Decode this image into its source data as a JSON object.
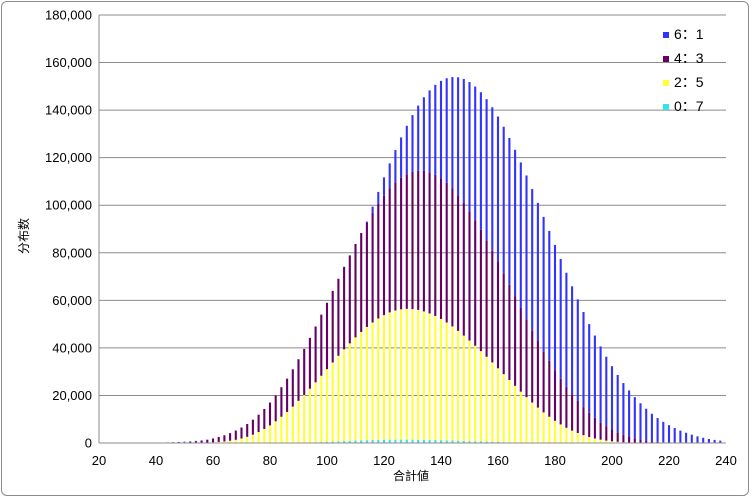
{
  "chart_data": {
    "type": "bar",
    "stacked": true,
    "title": "",
    "xlabel": "合計値",
    "ylabel": "分布数",
    "xlim": [
      20,
      240
    ],
    "ylim": [
      0,
      180000
    ],
    "x_ticks": [
      "20",
      "40",
      "60",
      "80",
      "100",
      "120",
      "140",
      "160",
      "180",
      "200",
      "220",
      "240"
    ],
    "y_ticks": [
      "0",
      "20,000",
      "40,000",
      "60,000",
      "80,000",
      "100,000",
      "120,000",
      "140,000",
      "160,000",
      "180,000"
    ],
    "grid": "horizontal",
    "legend_position": "top-right",
    "x": [
      28,
      30,
      32,
      34,
      36,
      38,
      40,
      42,
      44,
      46,
      48,
      50,
      52,
      54,
      56,
      58,
      60,
      62,
      64,
      66,
      68,
      70,
      72,
      74,
      76,
      78,
      80,
      82,
      84,
      86,
      88,
      90,
      92,
      94,
      96,
      98,
      100,
      102,
      104,
      106,
      108,
      110,
      112,
      114,
      116,
      118,
      120,
      122,
      124,
      126,
      128,
      130,
      132,
      134,
      136,
      138,
      140,
      142,
      144,
      146,
      148,
      150,
      152,
      154,
      156,
      158,
      160,
      162,
      164,
      166,
      168,
      170,
      172,
      174,
      176,
      178,
      180,
      182,
      184,
      186,
      188,
      190,
      192,
      194,
      196,
      198,
      200,
      202,
      204,
      206,
      208,
      210,
      212,
      214,
      216,
      218,
      220,
      222,
      224,
      226,
      228,
      230,
      232,
      234,
      236,
      238
    ],
    "series": [
      {
        "name": "0：7",
        "color": "#33e6e6",
        "values": [
          0,
          0,
          0,
          0,
          0,
          0,
          0,
          0,
          0,
          0,
          0,
          0,
          0,
          0,
          0,
          0,
          0,
          0,
          0,
          0,
          0,
          0,
          0,
          0,
          0,
          0,
          10,
          20,
          40,
          60,
          90,
          130,
          170,
          230,
          300,
          380,
          470,
          570,
          680,
          790,
          900,
          1010,
          1110,
          1200,
          1280,
          1340,
          1390,
          1420,
          1430,
          1430,
          1420,
          1400,
          1370,
          1330,
          1280,
          1230,
          1170,
          1100,
          1030,
          950,
          870,
          790,
          710,
          630,
          560,
          490,
          420,
          360,
          300,
          250,
          200,
          160,
          120,
          90,
          70,
          50,
          30,
          20,
          10,
          0,
          0,
          0,
          0,
          0,
          0,
          0,
          0,
          0,
          0,
          0,
          0,
          0,
          0,
          0,
          0,
          0,
          0,
          0,
          0,
          0,
          0,
          0,
          0,
          0,
          0,
          0
        ]
      },
      {
        "name": "2：5",
        "color": "#ffff33",
        "values": [
          0,
          0,
          0,
          0,
          0,
          0,
          0,
          0,
          0,
          0,
          0,
          0,
          50,
          80,
          130,
          200,
          300,
          450,
          650,
          950,
          1350,
          1900,
          2600,
          3500,
          4600,
          5900,
          7400,
          9100,
          11000,
          13000,
          15200,
          17600,
          20000,
          22600,
          25200,
          27900,
          30600,
          33300,
          36000,
          38600,
          41000,
          43400,
          45600,
          47600,
          49400,
          51000,
          52400,
          53500,
          54300,
          54800,
          55000,
          54900,
          54600,
          54000,
          53200,
          52200,
          51000,
          49600,
          48000,
          46200,
          44300,
          42300,
          40200,
          38000,
          35700,
          33400,
          31000,
          28600,
          26200,
          23800,
          21400,
          19100,
          16900,
          14800,
          12800,
          11000,
          9300,
          7800,
          6400,
          5200,
          4200,
          3300,
          2500,
          1900,
          1400,
          1000,
          700,
          500,
          300,
          200,
          100,
          50,
          0,
          0,
          0,
          0,
          0,
          0,
          0,
          0,
          0,
          0,
          0,
          0,
          0,
          0
        ]
      },
      {
        "name": "4：3",
        "color": "#660066",
        "values": [
          0,
          0,
          0,
          0,
          0,
          0,
          0,
          50,
          80,
          130,
          200,
          300,
          450,
          650,
          900,
          1200,
          1600,
          2100,
          2600,
          3200,
          3900,
          4600,
          5400,
          6300,
          7300,
          8400,
          9600,
          10900,
          12400,
          14000,
          15700,
          17500,
          19400,
          21400,
          23500,
          25700,
          27900,
          30100,
          32400,
          34700,
          37000,
          39300,
          41600,
          43900,
          46100,
          48200,
          50200,
          52100,
          53800,
          55300,
          56600,
          57700,
          58500,
          59100,
          59400,
          59400,
          59200,
          58700,
          58000,
          57000,
          55800,
          54400,
          52800,
          51000,
          49000,
          46900,
          44700,
          42400,
          40000,
          37600,
          35200,
          32800,
          30400,
          28000,
          25700,
          23500,
          21300,
          19200,
          17200,
          15300,
          13500,
          11800,
          10200,
          8700,
          7300,
          6100,
          5000,
          4000,
          3200,
          2500,
          1900,
          1400,
          1000,
          700,
          500,
          300,
          200,
          100,
          50,
          0,
          0,
          0,
          0,
          0,
          0,
          0
        ]
      },
      {
        "name": "6：1",
        "color": "#3333ff",
        "values": [
          0,
          0,
          0,
          0,
          0,
          0,
          0,
          0,
          0,
          0,
          0,
          0,
          0,
          0,
          0,
          0,
          0,
          0,
          0,
          0,
          0,
          0,
          0,
          0,
          0,
          0,
          0,
          0,
          0,
          0,
          0,
          0,
          0,
          0,
          0,
          0,
          0,
          0,
          0,
          0,
          0,
          0,
          0,
          0,
          0,
          0,
          0,
          0,
          0,
          0,
          0,
          0,
          0,
          0,
          0,
          0,
          0,
          0,
          0,
          0,
          0,
          0,
          0,
          0,
          0,
          0,
          0,
          0,
          0,
          0,
          0,
          0,
          0,
          0,
          0,
          0,
          0,
          0,
          0,
          0,
          0,
          0,
          0,
          0,
          0,
          0,
          0,
          0,
          0,
          0,
          0,
          0,
          0,
          0,
          0,
          0,
          0,
          0,
          0,
          0,
          0,
          0,
          0,
          0,
          0,
          0
        ]
      }
    ],
    "top_series_note_values": {
      "name": "6：1",
      "totals": [
        20,
        30,
        40,
        60,
        80,
        110,
        150,
        200,
        260,
        340,
        440,
        560,
        710,
        890,
        1110,
        1380,
        1700,
        2100,
        2600,
        3200,
        3950,
        4850,
        5950,
        7250,
        8800,
        10600,
        12700,
        15100,
        17800,
        20800,
        24100,
        27800,
        31800,
        36100,
        40800,
        45700,
        51000,
        56500,
        62300,
        68200,
        74300,
        80500,
        86800,
        93100,
        99400,
        105600,
        111700,
        117600,
        123200,
        128500,
        133400,
        137900,
        141900,
        145400,
        148300,
        150600,
        152300,
        153400,
        153900,
        153800,
        153100,
        151800,
        149900,
        147500,
        144600,
        141200,
        137300,
        133000,
        128300,
        123300,
        118000,
        112500,
        106800,
        101000,
        95100,
        89200,
        83300,
        77400,
        71600,
        65900,
        60400,
        55100,
        50000,
        45200,
        40600,
        36300,
        32300,
        28600,
        25200,
        22100,
        19300,
        16700,
        14400,
        12300,
        10500,
        8900,
        7500,
        6300,
        5200,
        4300,
        3500,
        2800,
        2200,
        1700,
        1300,
        1000
      ]
    }
  }
}
